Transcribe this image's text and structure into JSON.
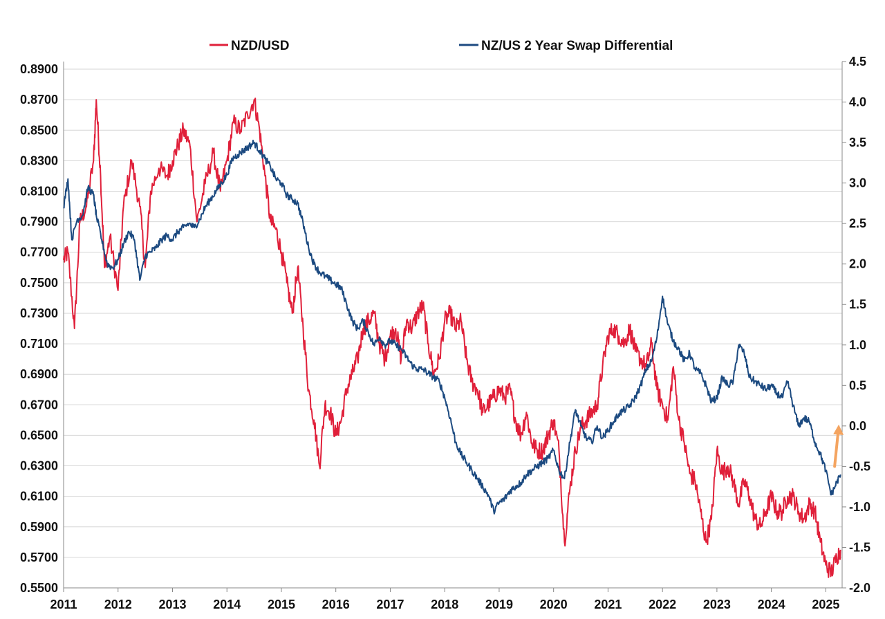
{
  "chart_data": {
    "type": "line",
    "title": "",
    "xlabel": "",
    "ylabel": "",
    "legend_position": "top",
    "grid": true,
    "x_ticks": [
      "2011",
      "2012",
      "2013",
      "2014",
      "2015",
      "2016",
      "2017",
      "2018",
      "2019",
      "2020",
      "2021",
      "2022",
      "2023",
      "2024",
      "2025"
    ],
    "y_left_ticks": [
      "0.5500",
      "0.5700",
      "0.5900",
      "0.6100",
      "0.6300",
      "0.6500",
      "0.6700",
      "0.6900",
      "0.7100",
      "0.7300",
      "0.7500",
      "0.7700",
      "0.7900",
      "0.8100",
      "0.8300",
      "0.8500",
      "0.8700",
      "0.8900"
    ],
    "y_right_ticks": [
      "-2.0",
      "-1.5",
      "-1.0",
      "-0.5",
      "0.0",
      "0.5",
      "1.0",
      "1.5",
      "2.0",
      "2.5",
      "3.0",
      "3.5",
      "4.0",
      "4.5"
    ],
    "x_range": [
      2011.0,
      2025.3
    ],
    "y_left_range": [
      0.55,
      0.895
    ],
    "y_right_range": [
      -2.0,
      4.5
    ],
    "series": [
      {
        "name": "NZD/USD",
        "axis": "left",
        "color": "#e0203a",
        "x": [
          2011.0,
          2011.08,
          2011.2,
          2011.3,
          2011.42,
          2011.55,
          2011.6,
          2011.68,
          2011.75,
          2011.85,
          2012.0,
          2012.1,
          2012.25,
          2012.4,
          2012.5,
          2012.6,
          2012.75,
          2012.9,
          2013.0,
          2013.1,
          2013.2,
          2013.32,
          2013.45,
          2013.6,
          2013.75,
          2013.88,
          2014.0,
          2014.12,
          2014.25,
          2014.38,
          2014.5,
          2014.6,
          2014.7,
          2014.8,
          2014.9,
          2015.0,
          2015.1,
          2015.2,
          2015.3,
          2015.4,
          2015.5,
          2015.6,
          2015.7,
          2015.8,
          2015.9,
          2016.0,
          2016.1,
          2016.2,
          2016.3,
          2016.4,
          2016.5,
          2016.6,
          2016.7,
          2016.8,
          2016.9,
          2017.0,
          2017.1,
          2017.2,
          2017.3,
          2017.4,
          2017.5,
          2017.6,
          2017.7,
          2017.8,
          2017.9,
          2018.0,
          2018.1,
          2018.2,
          2018.3,
          2018.4,
          2018.5,
          2018.6,
          2018.7,
          2018.8,
          2018.9,
          2019.0,
          2019.1,
          2019.2,
          2019.3,
          2019.4,
          2019.5,
          2019.6,
          2019.7,
          2019.8,
          2019.9,
          2020.0,
          2020.1,
          2020.2,
          2020.3,
          2020.4,
          2020.5,
          2020.6,
          2020.7,
          2020.8,
          2020.9,
          2021.0,
          2021.1,
          2021.2,
          2021.3,
          2021.4,
          2021.5,
          2021.6,
          2021.7,
          2021.8,
          2021.9,
          2022.0,
          2022.1,
          2022.2,
          2022.3,
          2022.4,
          2022.5,
          2022.6,
          2022.7,
          2022.8,
          2022.9,
          2023.0,
          2023.1,
          2023.2,
          2023.3,
          2023.4,
          2023.5,
          2023.6,
          2023.7,
          2023.8,
          2023.9,
          2024.0,
          2024.1,
          2024.2,
          2024.3,
          2024.4,
          2024.5,
          2024.6,
          2024.7,
          2024.8,
          2024.9,
          2025.0,
          2025.1,
          2025.2,
          2025.27
        ],
        "values": [
          0.765,
          0.77,
          0.72,
          0.79,
          0.8,
          0.83,
          0.87,
          0.82,
          0.76,
          0.78,
          0.745,
          0.8,
          0.83,
          0.8,
          0.76,
          0.81,
          0.825,
          0.82,
          0.83,
          0.84,
          0.85,
          0.84,
          0.79,
          0.815,
          0.835,
          0.81,
          0.83,
          0.855,
          0.85,
          0.86,
          0.87,
          0.85,
          0.82,
          0.79,
          0.785,
          0.77,
          0.75,
          0.73,
          0.76,
          0.72,
          0.68,
          0.66,
          0.63,
          0.67,
          0.665,
          0.65,
          0.66,
          0.68,
          0.69,
          0.7,
          0.72,
          0.725,
          0.73,
          0.71,
          0.7,
          0.715,
          0.72,
          0.7,
          0.725,
          0.72,
          0.73,
          0.735,
          0.71,
          0.69,
          0.7,
          0.725,
          0.73,
          0.72,
          0.725,
          0.7,
          0.685,
          0.68,
          0.665,
          0.67,
          0.675,
          0.68,
          0.675,
          0.68,
          0.66,
          0.65,
          0.665,
          0.645,
          0.64,
          0.64,
          0.65,
          0.66,
          0.64,
          0.58,
          0.615,
          0.64,
          0.655,
          0.66,
          0.665,
          0.67,
          0.695,
          0.715,
          0.72,
          0.715,
          0.71,
          0.72,
          0.705,
          0.7,
          0.695,
          0.71,
          0.68,
          0.67,
          0.66,
          0.695,
          0.66,
          0.645,
          0.625,
          0.62,
          0.6,
          0.58,
          0.595,
          0.64,
          0.625,
          0.63,
          0.62,
          0.605,
          0.62,
          0.61,
          0.595,
          0.59,
          0.6,
          0.61,
          0.6,
          0.6,
          0.61,
          0.61,
          0.6,
          0.595,
          0.605,
          0.6,
          0.58,
          0.565,
          0.56,
          0.57,
          0.575
        ],
        "approx": true
      },
      {
        "name": "NZ/US 2 Year Swap Differential",
        "axis": "right",
        "color": "#1c4a80",
        "x": [
          2011.0,
          2011.08,
          2011.15,
          2011.25,
          2011.35,
          2011.45,
          2011.55,
          2011.6,
          2011.7,
          2011.8,
          2011.9,
          2012.0,
          2012.1,
          2012.2,
          2012.3,
          2012.4,
          2012.5,
          2012.6,
          2012.7,
          2012.8,
          2012.9,
          2013.0,
          2013.1,
          2013.2,
          2013.3,
          2013.4,
          2013.5,
          2013.6,
          2013.7,
          2013.8,
          2013.9,
          2014.0,
          2014.1,
          2014.2,
          2014.3,
          2014.4,
          2014.5,
          2014.6,
          2014.7,
          2014.8,
          2014.9,
          2015.0,
          2015.1,
          2015.2,
          2015.3,
          2015.4,
          2015.5,
          2015.6,
          2015.7,
          2015.8,
          2015.9,
          2016.0,
          2016.1,
          2016.2,
          2016.3,
          2016.4,
          2016.5,
          2016.6,
          2016.7,
          2016.8,
          2016.9,
          2017.0,
          2017.1,
          2017.2,
          2017.3,
          2017.4,
          2017.5,
          2017.6,
          2017.7,
          2017.8,
          2017.9,
          2018.0,
          2018.1,
          2018.2,
          2018.3,
          2018.4,
          2018.5,
          2018.6,
          2018.7,
          2018.8,
          2018.9,
          2019.0,
          2019.1,
          2019.2,
          2019.3,
          2019.4,
          2019.5,
          2019.6,
          2019.7,
          2019.8,
          2019.9,
          2020.0,
          2020.1,
          2020.2,
          2020.3,
          2020.4,
          2020.5,
          2020.6,
          2020.7,
          2020.8,
          2020.9,
          2021.0,
          2021.1,
          2021.2,
          2021.3,
          2021.4,
          2021.5,
          2021.6,
          2021.7,
          2021.8,
          2021.9,
          2022.0,
          2022.1,
          2022.2,
          2022.3,
          2022.4,
          2022.5,
          2022.6,
          2022.7,
          2022.8,
          2022.9,
          2023.0,
          2023.1,
          2023.2,
          2023.3,
          2023.4,
          2023.5,
          2023.6,
          2023.7,
          2023.8,
          2023.9,
          2024.0,
          2024.1,
          2024.2,
          2024.3,
          2024.4,
          2024.5,
          2024.6,
          2024.7,
          2024.8,
          2024.9,
          2025.0,
          2025.1,
          2025.2,
          2025.27
        ],
        "values": [
          2.7,
          3.05,
          2.3,
          2.55,
          2.6,
          2.95,
          2.85,
          2.6,
          2.3,
          2.0,
          1.95,
          2.05,
          2.25,
          2.4,
          2.3,
          1.8,
          2.1,
          2.15,
          2.2,
          2.3,
          2.35,
          2.3,
          2.4,
          2.45,
          2.5,
          2.45,
          2.55,
          2.7,
          2.8,
          2.9,
          3.0,
          3.1,
          3.3,
          3.35,
          3.4,
          3.45,
          3.5,
          3.4,
          3.3,
          3.2,
          3.05,
          3.0,
          2.85,
          2.8,
          2.75,
          2.5,
          2.2,
          2.0,
          1.9,
          1.85,
          1.8,
          1.75,
          1.7,
          1.5,
          1.3,
          1.2,
          1.3,
          1.15,
          1.0,
          1.1,
          1.0,
          1.05,
          1.0,
          0.95,
          0.85,
          0.75,
          0.7,
          0.7,
          0.65,
          0.6,
          0.55,
          0.35,
          0.1,
          -0.2,
          -0.35,
          -0.45,
          -0.55,
          -0.65,
          -0.75,
          -0.85,
          -1.05,
          -0.95,
          -0.9,
          -0.8,
          -0.75,
          -0.7,
          -0.6,
          -0.55,
          -0.5,
          -0.45,
          -0.4,
          -0.3,
          -0.55,
          -0.65,
          -0.2,
          0.2,
          0.0,
          -0.15,
          -0.2,
          0.0,
          -0.15,
          -0.05,
          0.05,
          0.15,
          0.2,
          0.25,
          0.35,
          0.5,
          0.7,
          0.8,
          1.1,
          1.6,
          1.25,
          1.05,
          0.95,
          0.8,
          0.9,
          0.7,
          0.65,
          0.5,
          0.3,
          0.35,
          0.6,
          0.5,
          0.55,
          1.0,
          0.9,
          0.6,
          0.55,
          0.5,
          0.45,
          0.5,
          0.4,
          0.35,
          0.55,
          0.25,
          0.0,
          0.1,
          0.05,
          -0.2,
          -0.35,
          -0.55,
          -0.85,
          -0.7,
          -0.6
        ],
        "approx": true
      }
    ],
    "annotations": [
      {
        "type": "arrow",
        "color": "#f4a460",
        "x": 2025.2,
        "from": -0.5,
        "to": 0.0,
        "axis": "right"
      }
    ]
  }
}
